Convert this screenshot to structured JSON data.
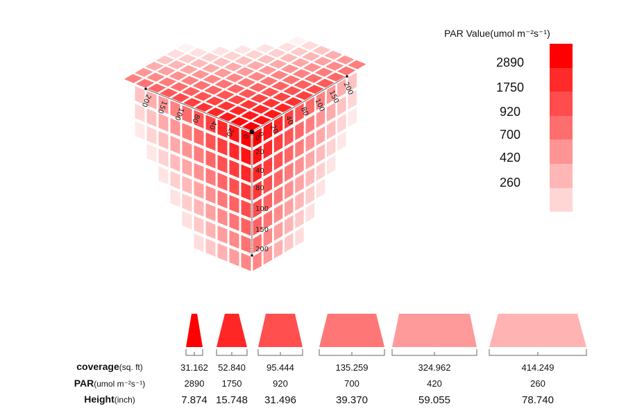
{
  "legend": {
    "title": "PAR Value(umol m⁻²s⁻¹)",
    "labels": [
      "2890",
      "1750",
      "920",
      "700",
      "420",
      "260"
    ],
    "colors": [
      "#ff0000",
      "#ff2a2a",
      "#ff4c4c",
      "#ff6e6e",
      "#ff9494",
      "#ffb6b6",
      "#ffd6d6"
    ]
  },
  "cube": {
    "vertical_axis_ticks": [
      "0",
      "20",
      "40",
      "80",
      "100",
      "150",
      "200"
    ],
    "left_axis_ticks": [
      "0",
      "20",
      "40",
      "80",
      "100",
      "150",
      "200"
    ],
    "right_axis_ticks": [
      "0",
      "20",
      "40",
      "80",
      "100",
      "150",
      "200"
    ]
  },
  "table": {
    "row_labels": [
      {
        "main": "coverage",
        "unit": "(sq. ft)"
      },
      {
        "main": "PAR",
        "unit": "(umol m⁻²s⁻¹)"
      },
      {
        "main": "Height",
        "unit": "(inch)"
      }
    ],
    "columns": [
      {
        "coverage": "31.162",
        "par": "2890",
        "height": "7.874",
        "color": "#ff0000"
      },
      {
        "coverage": "52.840",
        "par": "1750",
        "height": "15.748",
        "color": "#ff2626"
      },
      {
        "coverage": "95.444",
        "par": "920",
        "height": "31.496",
        "color": "#ff4f4f"
      },
      {
        "coverage": "135.259",
        "par": "700",
        "height": "39.370",
        "color": "#ff7676"
      },
      {
        "coverage": "324.962",
        "par": "420",
        "height": "59.055",
        "color": "#ff9a9a"
      },
      {
        "coverage": "414.249",
        "par": "260",
        "height": "78.740",
        "color": "#ffb3b3"
      }
    ]
  }
}
